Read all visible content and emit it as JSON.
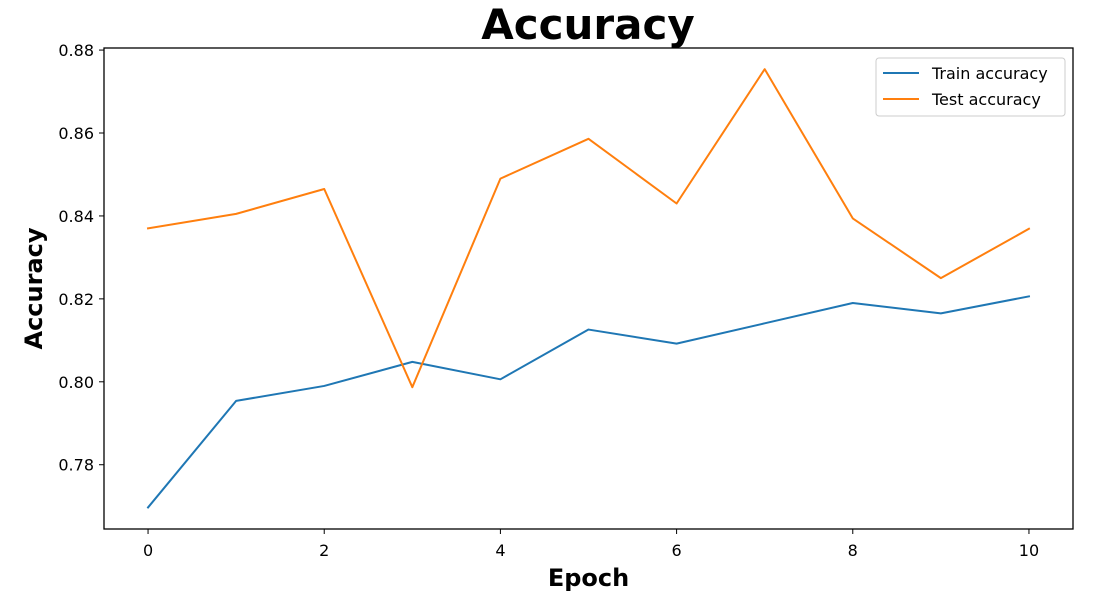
{
  "chart_data": {
    "type": "line",
    "title": "Accuracy",
    "xlabel": "Epoch",
    "ylabel": "Accuracy",
    "x": [
      0,
      1,
      2,
      3,
      4,
      5,
      6,
      7,
      8,
      9,
      10
    ],
    "xlim": [
      -0.5,
      10.5
    ],
    "ylim": [
      0.7645,
      0.8805
    ],
    "xticks": [
      0,
      2,
      4,
      6,
      8,
      10
    ],
    "yticks": [
      0.78,
      0.8,
      0.82,
      0.84,
      0.86,
      0.88
    ],
    "xtick_labels": [
      "0",
      "2",
      "4",
      "6",
      "8",
      "10"
    ],
    "ytick_labels": [
      "0.78",
      "0.80",
      "0.82",
      "0.84",
      "0.86",
      "0.88"
    ],
    "grid": false,
    "legend": "top-right",
    "series": [
      {
        "name": "Train accuracy",
        "color": "#1f77b4",
        "values": [
          0.7697,
          0.7954,
          0.799,
          0.8048,
          0.8006,
          0.8126,
          0.8092,
          0.8141,
          0.819,
          0.8165,
          0.8206
        ]
      },
      {
        "name": "Test accuracy",
        "color": "#ff7f0e",
        "values": [
          0.837,
          0.8405,
          0.8465,
          0.7987,
          0.849,
          0.8586,
          0.843,
          0.8754,
          0.8394,
          0.825,
          0.8369
        ]
      }
    ]
  }
}
